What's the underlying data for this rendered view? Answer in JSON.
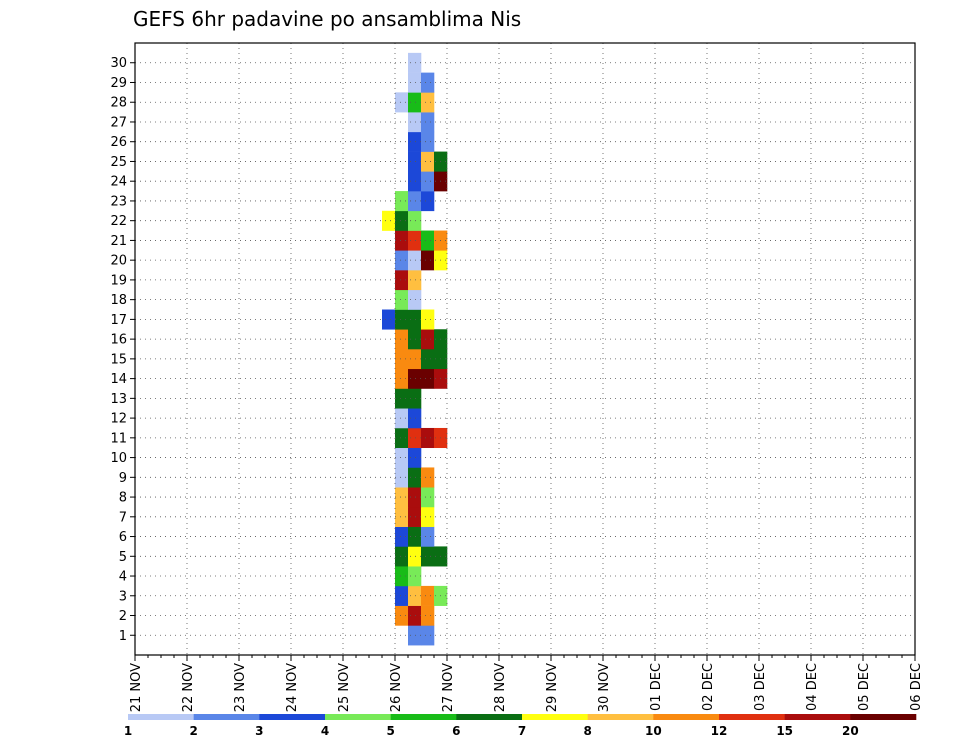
{
  "chart_data": {
    "type": "heatmap",
    "title": "GEFS 6hr padavine po ansamblima Nis",
    "y_ticks": [
      "1",
      "2",
      "3",
      "4",
      "5",
      "6",
      "7",
      "8",
      "9",
      "10",
      "11",
      "12",
      "13",
      "14",
      "15",
      "16",
      "17",
      "18",
      "19",
      "20",
      "21",
      "22",
      "23",
      "24",
      "25",
      "26",
      "27",
      "28",
      "29",
      "30"
    ],
    "x_ticks": [
      "21 NOV",
      "22 NOV",
      "23 NOV",
      "24 NOV",
      "25 NOV",
      "26 NOV",
      "27 NOV",
      "28 NOV",
      "29 NOV",
      "30 NOV",
      "01 DEC",
      "02 DEC",
      "03 DEC",
      "04 DEC",
      "05 DEC",
      "06 DEC"
    ],
    "x_steps_per_day": 4,
    "colorbar": {
      "ticks": [
        "1",
        "2",
        "3",
        "4",
        "5",
        "6",
        "7",
        "8",
        "10",
        "12",
        "15",
        "20"
      ],
      "colors": [
        "#b8c9f5",
        "#5a86e8",
        "#1c48d8",
        "#78ea58",
        "#18bc18",
        "#0a6e14",
        "#ffff10",
        "#ffbf40",
        "#f98a10",
        "#e03010",
        "#aa0d0d",
        "#6a0000"
      ]
    },
    "grid": true,
    "cells": [
      {
        "y": 1,
        "x": [
          [
            21,
            2
          ],
          [
            22,
            2
          ]
        ]
      },
      {
        "y": 2,
        "x": [
          [
            20,
            9
          ],
          [
            21,
            11
          ],
          [
            22,
            9
          ]
        ]
      },
      {
        "y": 3,
        "x": [
          [
            20,
            3
          ],
          [
            21,
            8
          ],
          [
            22,
            9
          ],
          [
            23,
            4
          ]
        ]
      },
      {
        "y": 4,
        "x": [
          [
            20,
            5
          ],
          [
            21,
            4
          ]
        ]
      },
      {
        "y": 5,
        "x": [
          [
            20,
            6
          ],
          [
            21,
            7
          ],
          [
            22,
            6
          ],
          [
            23,
            6
          ]
        ]
      },
      {
        "y": 6,
        "x": [
          [
            20,
            3
          ],
          [
            21,
            6
          ],
          [
            22,
            2
          ]
        ]
      },
      {
        "y": 7,
        "x": [
          [
            20,
            8
          ],
          [
            21,
            11
          ],
          [
            22,
            7
          ]
        ]
      },
      {
        "y": 8,
        "x": [
          [
            20,
            8
          ],
          [
            21,
            11
          ],
          [
            22,
            4
          ]
        ]
      },
      {
        "y": 9,
        "x": [
          [
            20,
            1
          ],
          [
            21,
            6
          ],
          [
            22,
            9
          ]
        ]
      },
      {
        "y": 10,
        "x": [
          [
            20,
            1
          ],
          [
            21,
            3
          ]
        ]
      },
      {
        "y": 11,
        "x": [
          [
            20,
            6
          ],
          [
            21,
            10
          ],
          [
            22,
            11
          ],
          [
            23,
            10
          ]
        ]
      },
      {
        "y": 12,
        "x": [
          [
            20,
            1
          ],
          [
            21,
            3
          ]
        ]
      },
      {
        "y": 13,
        "x": [
          [
            20,
            6
          ],
          [
            21,
            6
          ]
        ]
      },
      {
        "y": 14,
        "x": [
          [
            20,
            9
          ],
          [
            21,
            12
          ],
          [
            22,
            12
          ],
          [
            23,
            11
          ]
        ]
      },
      {
        "y": 15,
        "x": [
          [
            20,
            9
          ],
          [
            21,
            9
          ],
          [
            22,
            6
          ],
          [
            23,
            6
          ]
        ]
      },
      {
        "y": 16,
        "x": [
          [
            20,
            9
          ],
          [
            21,
            6
          ],
          [
            22,
            11
          ],
          [
            23,
            6
          ]
        ]
      },
      {
        "y": 17,
        "x": [
          [
            19,
            3
          ],
          [
            20,
            6
          ],
          [
            21,
            6
          ],
          [
            22,
            7
          ]
        ]
      },
      {
        "y": 18,
        "x": [
          [
            20,
            4
          ],
          [
            21,
            1
          ]
        ]
      },
      {
        "y": 19,
        "x": [
          [
            20,
            11
          ],
          [
            21,
            8
          ]
        ]
      },
      {
        "y": 20,
        "x": [
          [
            20,
            2
          ],
          [
            21,
            1
          ],
          [
            22,
            12
          ],
          [
            23,
            7
          ]
        ]
      },
      {
        "y": 21,
        "x": [
          [
            20,
            11
          ],
          [
            21,
            10
          ],
          [
            22,
            5
          ],
          [
            23,
            9
          ]
        ]
      },
      {
        "y": 22,
        "x": [
          [
            19,
            7
          ],
          [
            20,
            6
          ],
          [
            21,
            4
          ]
        ]
      },
      {
        "y": 23,
        "x": [
          [
            20,
            4
          ],
          [
            21,
            2
          ],
          [
            22,
            3
          ]
        ]
      },
      {
        "y": 24,
        "x": [
          [
            21,
            3
          ],
          [
            22,
            2
          ],
          [
            23,
            12
          ]
        ]
      },
      {
        "y": 25,
        "x": [
          [
            21,
            3
          ],
          [
            22,
            8
          ],
          [
            23,
            6
          ]
        ]
      },
      {
        "y": 26,
        "x": [
          [
            21,
            3
          ],
          [
            22,
            2
          ]
        ]
      },
      {
        "y": 27,
        "x": [
          [
            21,
            1
          ],
          [
            22,
            2
          ]
        ]
      },
      {
        "y": 28,
        "x": [
          [
            20,
            1
          ],
          [
            21,
            5
          ],
          [
            22,
            8
          ]
        ]
      },
      {
        "y": 29,
        "x": [
          [
            21,
            1
          ],
          [
            22,
            2
          ]
        ]
      },
      {
        "y": 30,
        "x": [
          [
            21,
            1
          ]
        ]
      }
    ]
  }
}
